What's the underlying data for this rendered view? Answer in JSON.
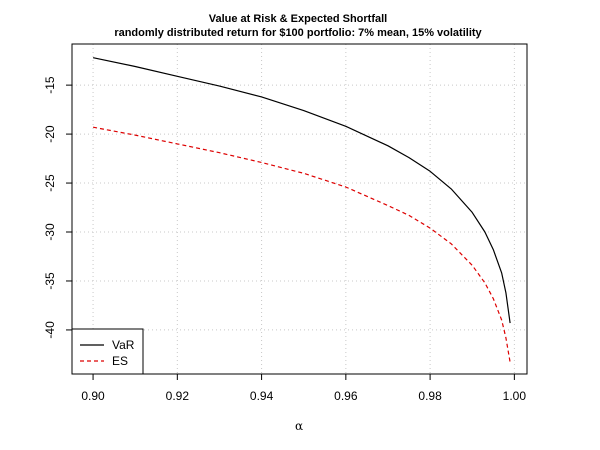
{
  "chart_data": {
    "type": "line",
    "title": "Value at Risk & Expected Shortfall",
    "subtitle": "randomly distributed return for $100 portfolio: 7% mean, 15% volatility",
    "xlabel": "α",
    "ylabel": "",
    "xlim": [
      0.895,
      1.003
    ],
    "ylim": [
      -44.5,
      -10.8
    ],
    "xticks": [
      0.9,
      0.92,
      0.94,
      0.96,
      0.98,
      1.0
    ],
    "xtick_labels": [
      "0.90",
      "0.92",
      "0.94",
      "0.96",
      "0.98",
      "1.00"
    ],
    "yticks": [
      -15,
      -20,
      -25,
      -30,
      -35,
      -40
    ],
    "ytick_labels": [
      "-15",
      "-20",
      "-25",
      "-30",
      "-35",
      "-40"
    ],
    "grid": true,
    "legend_position": "bottom-left",
    "series": [
      {
        "name": "VaR",
        "color": "#000000",
        "dash": "solid",
        "x": [
          0.9,
          0.91,
          0.92,
          0.93,
          0.94,
          0.95,
          0.96,
          0.97,
          0.975,
          0.98,
          0.985,
          0.99,
          0.993,
          0.995,
          0.997,
          0.998,
          0.999
        ],
        "y": [
          -12.2,
          -13.1,
          -14.1,
          -15.1,
          -16.2,
          -17.6,
          -19.2,
          -21.2,
          -22.4,
          -23.8,
          -25.6,
          -28.0,
          -30.0,
          -31.8,
          -34.2,
          -36.2,
          -39.3
        ]
      },
      {
        "name": "ES",
        "color": "#dd0000",
        "dash": "dashed",
        "x": [
          0.9,
          0.91,
          0.92,
          0.93,
          0.94,
          0.95,
          0.96,
          0.97,
          0.975,
          0.98,
          0.985,
          0.99,
          0.993,
          0.995,
          0.997,
          0.998,
          0.999
        ],
        "y": [
          -19.3,
          -20.1,
          -21.0,
          -21.9,
          -22.9,
          -24.0,
          -25.4,
          -27.3,
          -28.3,
          -29.6,
          -31.2,
          -33.4,
          -35.2,
          -36.8,
          -39.0,
          -40.8,
          -43.3
        ]
      }
    ]
  }
}
